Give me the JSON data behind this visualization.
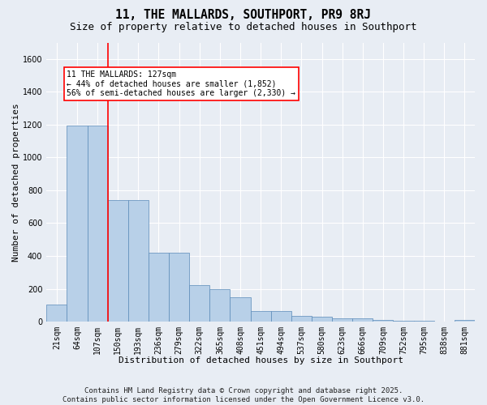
{
  "title": "11, THE MALLARDS, SOUTHPORT, PR9 8RJ",
  "subtitle": "Size of property relative to detached houses in Southport",
  "xlabel": "Distribution of detached houses by size in Southport",
  "ylabel": "Number of detached properties",
  "categories": [
    "21sqm",
    "64sqm",
    "107sqm",
    "150sqm",
    "193sqm",
    "236sqm",
    "279sqm",
    "322sqm",
    "365sqm",
    "408sqm",
    "451sqm",
    "494sqm",
    "537sqm",
    "580sqm",
    "623sqm",
    "666sqm",
    "709sqm",
    "752sqm",
    "795sqm",
    "838sqm",
    "881sqm"
  ],
  "values": [
    103,
    1195,
    1195,
    740,
    740,
    420,
    420,
    225,
    200,
    150,
    65,
    65,
    35,
    30,
    18,
    18,
    10,
    5,
    5,
    0,
    8
  ],
  "bar_color": "#b8d0e8",
  "bar_edge_color": "#5a8ab8",
  "vline_x": 2.5,
  "vline_color": "red",
  "annotation_text": "11 THE MALLARDS: 127sqm\n← 44% of detached houses are smaller (1,852)\n56% of semi-detached houses are larger (2,330) →",
  "annotation_box_color": "white",
  "annotation_box_edge": "red",
  "ylim": [
    0,
    1700
  ],
  "yticks": [
    0,
    200,
    400,
    600,
    800,
    1000,
    1200,
    1400,
    1600
  ],
  "bg_color": "#e8edf4",
  "plot_bg_color": "#e8edf4",
  "grid_color": "white",
  "footer": "Contains HM Land Registry data © Crown copyright and database right 2025.\nContains public sector information licensed under the Open Government Licence v3.0.",
  "title_fontsize": 10.5,
  "subtitle_fontsize": 9,
  "xlabel_fontsize": 8,
  "ylabel_fontsize": 8,
  "tick_fontsize": 7,
  "annotation_fontsize": 7,
  "footer_fontsize": 6.5
}
